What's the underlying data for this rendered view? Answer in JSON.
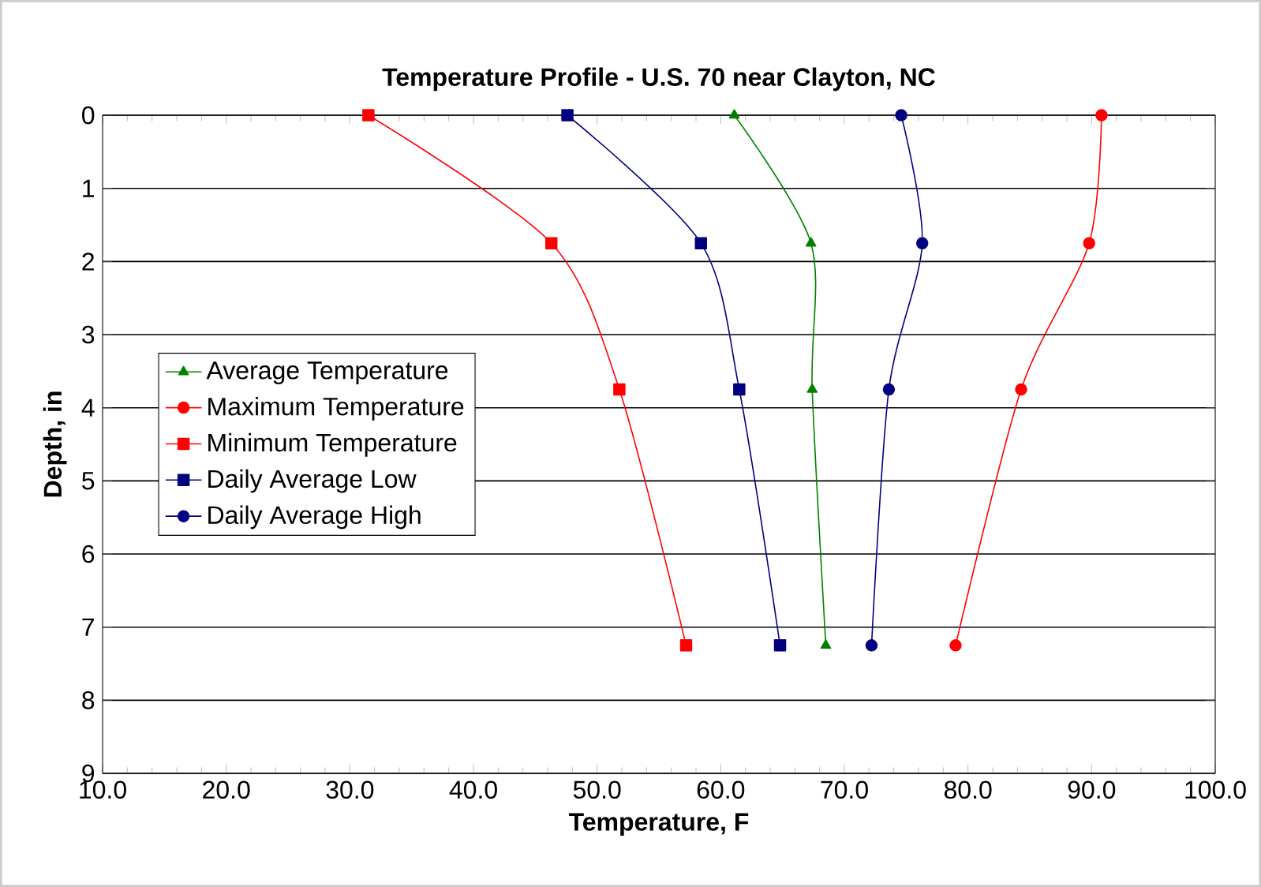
{
  "chart_data": {
    "type": "line",
    "title": "Temperature Profile - U.S. 70 near Clayton, NC",
    "xlabel": "Temperature, F",
    "ylabel": "Depth, in",
    "orientation": "horizontal",
    "x": [
      0,
      1.75,
      3.75,
      7.25
    ],
    "series": [
      {
        "name": "Average Temperature",
        "color": "#008000",
        "marker": "triangle",
        "values": [
          61.1,
          67.3,
          67.4,
          68.5
        ]
      },
      {
        "name": "Maximum Temperature",
        "color": "#ff0000",
        "marker": "circle",
        "values": [
          90.8,
          89.8,
          84.3,
          79.0
        ]
      },
      {
        "name": "Minimum Temperature",
        "color": "#ff0000",
        "marker": "square",
        "values": [
          31.5,
          46.3,
          51.8,
          57.2
        ]
      },
      {
        "name": "Daily Average Low",
        "color": "#000080",
        "marker": "square",
        "values": [
          47.6,
          58.4,
          61.5,
          64.8
        ]
      },
      {
        "name": "Daily Average High",
        "color": "#000080",
        "marker": "circle",
        "values": [
          74.6,
          76.3,
          73.6,
          72.2
        ]
      }
    ],
    "xlim": [
      10,
      100
    ],
    "xticks": [
      {
        "value": 10,
        "label": "10.0"
      },
      {
        "value": 20,
        "label": "20.0"
      },
      {
        "value": 30,
        "label": "30.0"
      },
      {
        "value": 40,
        "label": "40.0"
      },
      {
        "value": 50,
        "label": "50.0"
      },
      {
        "value": 60,
        "label": "60.0"
      },
      {
        "value": 70,
        "label": "70.0"
      },
      {
        "value": 80,
        "label": "80.0"
      },
      {
        "value": 90,
        "label": "90.0"
      },
      {
        "value": 100,
        "label": "100.0"
      }
    ],
    "ylim": [
      9,
      0
    ],
    "yticks": [
      0,
      1,
      2,
      3,
      4,
      5,
      6,
      7,
      8,
      9
    ],
    "grid": "y",
    "legend": "left"
  }
}
